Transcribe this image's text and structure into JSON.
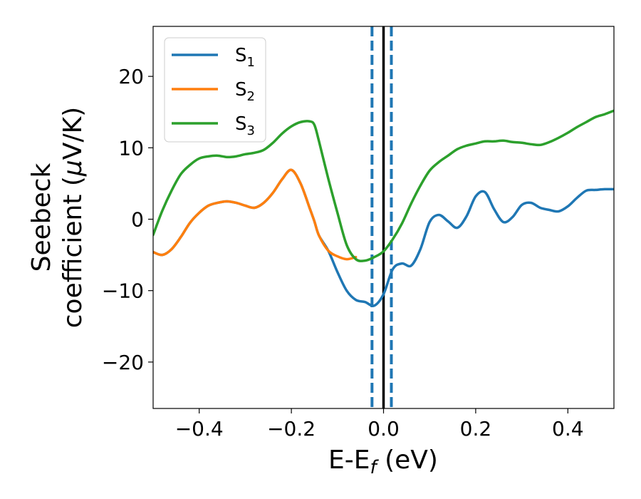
{
  "chart_data": {
    "type": "line",
    "xlabel": {
      "base": "E-E",
      "sub": "f",
      "suffix": " (eV)"
    },
    "ylabel": {
      "line1": "Seebeck",
      "line2": "coefficient (",
      "mu": "μ",
      "line2_end": "V/K)"
    },
    "xlim": [
      -0.5,
      0.5
    ],
    "ylim": [
      -26.5,
      27
    ],
    "xticks": [
      -0.4,
      -0.2,
      0.0,
      0.2,
      0.4
    ],
    "xtick_labels": [
      "−0.4",
      "−0.2",
      "0.0",
      "0.2",
      "0.4"
    ],
    "yticks": [
      -20,
      -10,
      0,
      10,
      20
    ],
    "ytick_labels": [
      "−20",
      "−10",
      "0",
      "10",
      "20"
    ],
    "legend_position": "top-left",
    "series": [
      {
        "name": {
          "base": "S",
          "sub": "1"
        },
        "color": "#1f77b4",
        "x": [
          -0.5,
          -0.48,
          -0.46,
          -0.44,
          -0.42,
          -0.4,
          -0.38,
          -0.36,
          -0.34,
          -0.32,
          -0.3,
          -0.28,
          -0.26,
          -0.24,
          -0.22,
          -0.2,
          -0.18,
          -0.16,
          -0.15,
          -0.14,
          -0.12,
          -0.1,
          -0.08,
          -0.06,
          -0.04,
          -0.02,
          0.0,
          0.02,
          0.04,
          0.06,
          0.08,
          0.1,
          0.12,
          0.14,
          0.16,
          0.18,
          0.2,
          0.22,
          0.24,
          0.26,
          0.28,
          0.3,
          0.32,
          0.34,
          0.36,
          0.38,
          0.4,
          0.42,
          0.44,
          0.46,
          0.48,
          0.5
        ],
        "y": [
          -4.6,
          -5.0,
          -4.2,
          -2.5,
          -0.5,
          0.9,
          1.9,
          2.3,
          2.5,
          2.3,
          1.9,
          1.6,
          2.3,
          3.7,
          5.6,
          6.9,
          5.0,
          1.5,
          -0.3,
          -2.3,
          -4.4,
          -7.4,
          -10.0,
          -11.3,
          -11.6,
          -12.1,
          -10.5,
          -7.0,
          -6.2,
          -6.5,
          -4.2,
          -0.4,
          0.6,
          -0.3,
          -1.2,
          0.4,
          3.2,
          3.8,
          1.4,
          -0.4,
          0.3,
          2.0,
          2.3,
          1.6,
          1.3,
          1.1,
          1.8,
          3.0,
          4.0,
          4.1,
          4.2,
          4.2
        ]
      },
      {
        "name": {
          "base": "S",
          "sub": "2"
        },
        "color": "#ff7f0e",
        "x": [
          -0.5,
          -0.48,
          -0.46,
          -0.44,
          -0.42,
          -0.4,
          -0.38,
          -0.36,
          -0.34,
          -0.32,
          -0.3,
          -0.28,
          -0.26,
          -0.24,
          -0.22,
          -0.2,
          -0.18,
          -0.16,
          -0.15,
          -0.14,
          -0.12,
          -0.1,
          -0.08,
          -0.06
        ],
        "y": [
          -4.6,
          -5.0,
          -4.2,
          -2.5,
          -0.5,
          0.9,
          1.9,
          2.3,
          2.5,
          2.3,
          1.9,
          1.6,
          2.3,
          3.7,
          5.6,
          6.9,
          5.0,
          1.5,
          -0.3,
          -2.3,
          -4.4,
          -5.2,
          -5.6,
          -5.3
        ]
      },
      {
        "name": {
          "base": "S",
          "sub": "3"
        },
        "color": "#2ca02c",
        "x": [
          -0.5,
          -0.48,
          -0.46,
          -0.44,
          -0.42,
          -0.4,
          -0.38,
          -0.36,
          -0.34,
          -0.32,
          -0.3,
          -0.28,
          -0.26,
          -0.24,
          -0.22,
          -0.2,
          -0.18,
          -0.16,
          -0.15,
          -0.14,
          -0.12,
          -0.1,
          -0.08,
          -0.06,
          -0.04,
          -0.02,
          0.0,
          0.02,
          0.04,
          0.06,
          0.08,
          0.1,
          0.12,
          0.14,
          0.16,
          0.18,
          0.2,
          0.22,
          0.24,
          0.26,
          0.28,
          0.3,
          0.32,
          0.34,
          0.36,
          0.38,
          0.4,
          0.42,
          0.44,
          0.46,
          0.48,
          0.5
        ],
        "y": [
          -2.2,
          1.2,
          4.0,
          6.3,
          7.6,
          8.5,
          8.8,
          8.9,
          8.7,
          8.8,
          9.1,
          9.3,
          9.7,
          10.7,
          12.0,
          13.0,
          13.6,
          13.7,
          13.2,
          10.9,
          5.7,
          0.9,
          -3.6,
          -5.6,
          -5.8,
          -5.3,
          -4.5,
          -2.8,
          -0.6,
          2.2,
          4.7,
          6.8,
          8.0,
          8.9,
          9.8,
          10.3,
          10.6,
          10.9,
          10.9,
          11.0,
          10.8,
          10.7,
          10.5,
          10.4,
          10.8,
          11.4,
          12.1,
          12.9,
          13.6,
          14.3,
          14.7,
          15.2
        ]
      }
    ],
    "vlines": [
      {
        "x": 0.0,
        "color": "#000000",
        "style": "solid"
      },
      {
        "x": -0.025,
        "color": "#1f77b4",
        "style": "dashed"
      },
      {
        "x": 0.017,
        "color": "#1f77b4",
        "style": "dashed"
      }
    ]
  }
}
